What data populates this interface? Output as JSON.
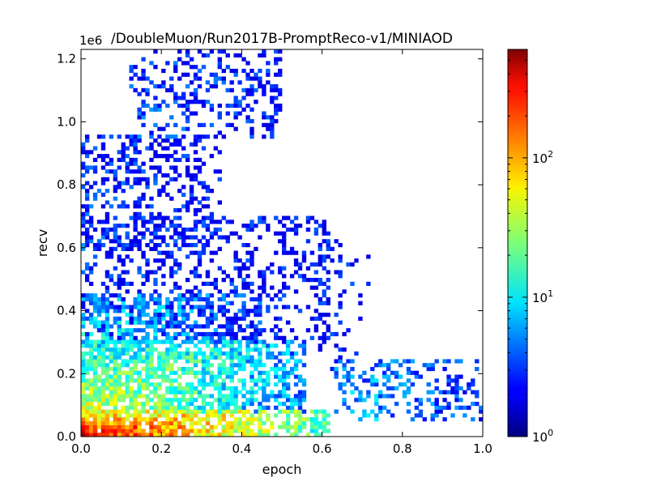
{
  "chart_data": {
    "type": "heatmap",
    "title": "/DoubleMuon/Run2017B-PromptReco-v1/MINIAOD",
    "xlabel": "epoch",
    "ylabel": "recv",
    "y_offset_label": "1e6",
    "xlim": [
      0.0,
      1.0
    ],
    "ylim": [
      0.0,
      1.23
    ],
    "x_ticks": [
      "0.0",
      "0.2",
      "0.4",
      "0.6",
      "0.8",
      "1.0"
    ],
    "y_ticks": [
      "0.0",
      "0.2",
      "0.4",
      "0.6",
      "0.8",
      "1.0",
      "1.2"
    ],
    "colorbar": {
      "scale": "log",
      "range": [
        1,
        600
      ],
      "ticks": [
        {
          "base": "10",
          "exp": "0",
          "value": 1
        },
        {
          "base": "10",
          "exp": "1",
          "value": 10
        },
        {
          "base": "10",
          "exp": "2",
          "value": 100
        }
      ],
      "colormap": "jet"
    },
    "bins": {
      "nx": 100,
      "ny": 100
    },
    "clusters": [
      {
        "x": [
          0.0,
          0.62
        ],
        "y": [
          0.0,
          0.08
        ],
        "density": 0.96,
        "level": [
          0.85,
          0.35
        ],
        "xdecay": 0.55
      },
      {
        "x": [
          0.0,
          0.55
        ],
        "y": [
          0.08,
          0.3
        ],
        "density": 0.85,
        "level": [
          0.55,
          0.15
        ],
        "xdecay": 0.6
      },
      {
        "x": [
          0.0,
          0.45
        ],
        "y": [
          0.3,
          0.45
        ],
        "density": 0.6,
        "level": [
          0.3,
          0.05
        ],
        "xdecay": 0.7
      },
      {
        "x": [
          0.0,
          0.62
        ],
        "y": [
          0.3,
          0.7
        ],
        "density": 0.25,
        "level": [
          0.05,
          0.0
        ],
        "xdecay": 1.0
      },
      {
        "x": [
          0.0,
          0.35
        ],
        "y": [
          0.6,
          0.95
        ],
        "density": 0.32,
        "level": [
          0.08,
          0.0
        ],
        "xdecay": 1.0
      },
      {
        "x": [
          0.12,
          0.5
        ],
        "y": [
          0.95,
          1.23
        ],
        "density": 0.28,
        "level": [
          0.1,
          0.0
        ],
        "xdecay": 1.0
      },
      {
        "x": [
          0.62,
          1.0
        ],
        "y": [
          0.06,
          0.24
        ],
        "density": 0.3,
        "level": [
          0.25,
          0.05
        ],
        "xdecay": 1.0
      },
      {
        "x": [
          0.58,
          0.72
        ],
        "y": [
          0.25,
          0.62
        ],
        "density": 0.12,
        "level": [
          0.02,
          0.0
        ],
        "xdecay": 1.0
      }
    ]
  }
}
